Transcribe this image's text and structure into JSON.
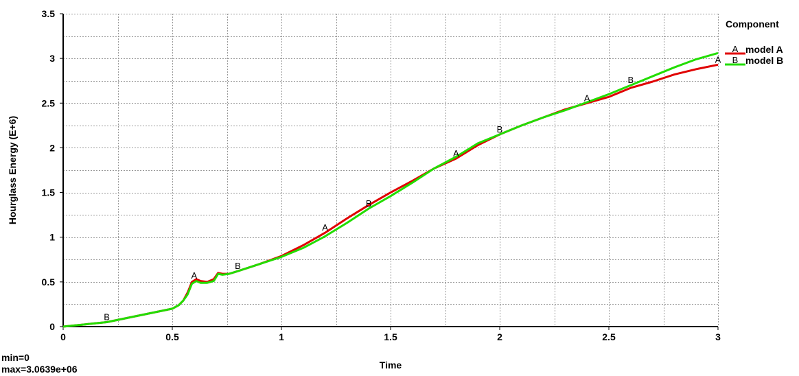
{
  "chart_data": {
    "type": "line",
    "xlabel": "Time",
    "ylabel": "Hourglass Energy (E+6)",
    "xlim": [
      0,
      3
    ],
    "ylim": [
      0,
      3.5
    ],
    "xticks": [
      "0",
      "0.5",
      "1",
      "1.5",
      "2",
      "2.5",
      "3"
    ],
    "yticks": [
      "0",
      "0.5",
      "1",
      "1.5",
      "2",
      "2.5",
      "3",
      "3.5"
    ],
    "grid": true,
    "legend_title": "Component",
    "legend_position": "right",
    "series": [
      {
        "name": "model A",
        "marker": "A",
        "color": "#e00000",
        "x": [
          0,
          0.2,
          0.5,
          0.53,
          0.55,
          0.57,
          0.59,
          0.61,
          0.63,
          0.66,
          0.69,
          0.71,
          0.73,
          0.76,
          0.8,
          0.9,
          1.0,
          1.1,
          1.2,
          1.3,
          1.4,
          1.5,
          1.6,
          1.7,
          1.8,
          1.9,
          2.0,
          2.1,
          2.2,
          2.3,
          2.4,
          2.5,
          2.6,
          2.7,
          2.8,
          2.9,
          3.0
        ],
        "y": [
          0,
          0.05,
          0.2,
          0.24,
          0.29,
          0.38,
          0.5,
          0.53,
          0.51,
          0.5,
          0.53,
          0.6,
          0.59,
          0.59,
          0.62,
          0.7,
          0.79,
          0.91,
          1.05,
          1.21,
          1.36,
          1.5,
          1.63,
          1.77,
          1.88,
          2.03,
          2.15,
          2.25,
          2.34,
          2.43,
          2.5,
          2.57,
          2.67,
          2.74,
          2.82,
          2.88,
          2.93
        ],
        "marker_x": [
          0.6,
          1.2,
          1.8,
          2.4,
          3.0
        ]
      },
      {
        "name": "model B",
        "marker": "B",
        "color": "#22dd00",
        "x": [
          0,
          0.2,
          0.5,
          0.53,
          0.55,
          0.57,
          0.59,
          0.61,
          0.63,
          0.66,
          0.69,
          0.71,
          0.73,
          0.76,
          0.8,
          0.9,
          1.0,
          1.1,
          1.2,
          1.3,
          1.4,
          1.5,
          1.6,
          1.7,
          1.8,
          1.9,
          2.0,
          2.1,
          2.2,
          2.3,
          2.4,
          2.5,
          2.6,
          2.7,
          2.8,
          2.9,
          3.0
        ],
        "y": [
          0,
          0.05,
          0.2,
          0.24,
          0.29,
          0.36,
          0.48,
          0.51,
          0.49,
          0.49,
          0.51,
          0.59,
          0.58,
          0.59,
          0.62,
          0.7,
          0.78,
          0.88,
          1.01,
          1.16,
          1.32,
          1.46,
          1.61,
          1.77,
          1.9,
          2.05,
          2.15,
          2.25,
          2.34,
          2.42,
          2.51,
          2.6,
          2.7,
          2.8,
          2.9,
          2.99,
          3.06
        ],
        "marker_x": [
          0.2,
          0.8,
          1.4,
          2.0,
          2.6
        ]
      }
    ]
  },
  "stats": {
    "min_text": "min=0",
    "max_text": "max=3.0639e+06"
  }
}
